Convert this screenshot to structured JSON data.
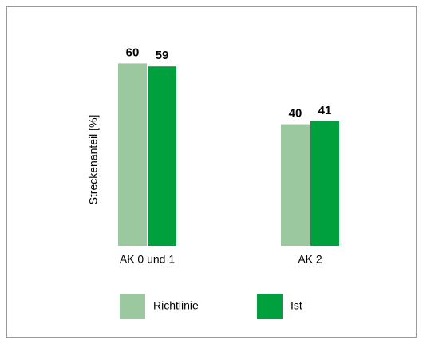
{
  "chart_data": {
    "type": "bar",
    "y_label": "Streckenanteil [%]",
    "categories": [
      "AK 0 und 1",
      "AK 2"
    ],
    "series": [
      {
        "name": "Richtlinie",
        "color": "#9cc8a0",
        "values": [
          60,
          40
        ]
      },
      {
        "name": "Ist",
        "color": "#00a03c",
        "values": [
          59,
          41
        ]
      }
    ],
    "ylim": [
      0,
      70
    ]
  }
}
